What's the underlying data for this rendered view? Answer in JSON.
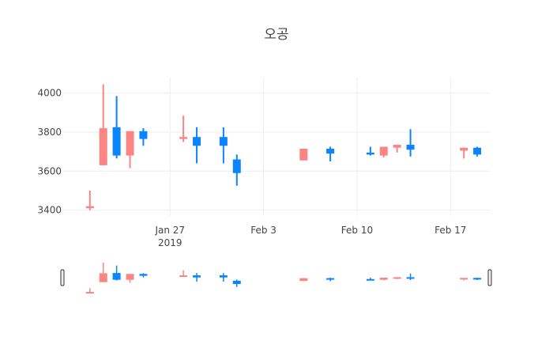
{
  "chart_data": {
    "type": "candlestick",
    "title": "오공",
    "xlabel": "",
    "ylabel": "",
    "ylim": [
      3370,
      4080
    ],
    "x_range": [
      "2019-01-19",
      "2019-02-20"
    ],
    "y_ticks": [
      "3400",
      "3600",
      "3800",
      "4000"
    ],
    "y_tick_values": [
      3400,
      3600,
      3800,
      4000
    ],
    "x_ticks": [
      {
        "date": "2019-01-27",
        "label": "Jan 27",
        "sublabel": "2019"
      },
      {
        "date": "2019-02-03",
        "label": "Feb 3",
        "sublabel": ""
      },
      {
        "date": "2019-02-10",
        "label": "Feb 10",
        "sublabel": ""
      },
      {
        "date": "2019-02-17",
        "label": "Feb 17",
        "sublabel": ""
      }
    ],
    "grid": true,
    "rangeslider": true,
    "colors": {
      "increasing": "#0a84ff",
      "decreasing": "#fa8583",
      "grid": "#eeeeee",
      "text": "#444444"
    },
    "candles": [
      {
        "date": "2019-01-21",
        "open": 3420,
        "high": 3500,
        "low": 3400,
        "close": 3410
      },
      {
        "date": "2019-01-22",
        "open": 3820,
        "high": 4045,
        "low": 3630,
        "close": 3630
      },
      {
        "date": "2019-01-23",
        "open": 3680,
        "high": 3985,
        "low": 3665,
        "close": 3825
      },
      {
        "date": "2019-01-24",
        "open": 3805,
        "high": 3805,
        "low": 3615,
        "close": 3680
      },
      {
        "date": "2019-01-25",
        "open": 3765,
        "high": 3820,
        "low": 3730,
        "close": 3805
      },
      {
        "date": "2019-01-28",
        "open": 3775,
        "high": 3885,
        "low": 3750,
        "close": 3765
      },
      {
        "date": "2019-01-29",
        "open": 3730,
        "high": 3825,
        "low": 3640,
        "close": 3775
      },
      {
        "date": "2019-01-31",
        "open": 3730,
        "high": 3825,
        "low": 3640,
        "close": 3775
      },
      {
        "date": "2019-02-01",
        "open": 3590,
        "high": 3685,
        "low": 3525,
        "close": 3660
      },
      {
        "date": "2019-02-06",
        "open": 3715,
        "high": 3715,
        "low": 3655,
        "close": 3655
      },
      {
        "date": "2019-02-08",
        "open": 3690,
        "high": 3725,
        "low": 3650,
        "close": 3715
      },
      {
        "date": "2019-02-11",
        "open": 3685,
        "high": 3725,
        "low": 3680,
        "close": 3695
      },
      {
        "date": "2019-02-12",
        "open": 3725,
        "high": 3725,
        "low": 3670,
        "close": 3680
      },
      {
        "date": "2019-02-13",
        "open": 3735,
        "high": 3735,
        "low": 3695,
        "close": 3720
      },
      {
        "date": "2019-02-14",
        "open": 3710,
        "high": 3815,
        "low": 3675,
        "close": 3735
      },
      {
        "date": "2019-02-18",
        "open": 3720,
        "high": 3720,
        "low": 3665,
        "close": 3705
      },
      {
        "date": "2019-02-19",
        "open": 3685,
        "high": 3725,
        "low": 3675,
        "close": 3720
      }
    ]
  }
}
